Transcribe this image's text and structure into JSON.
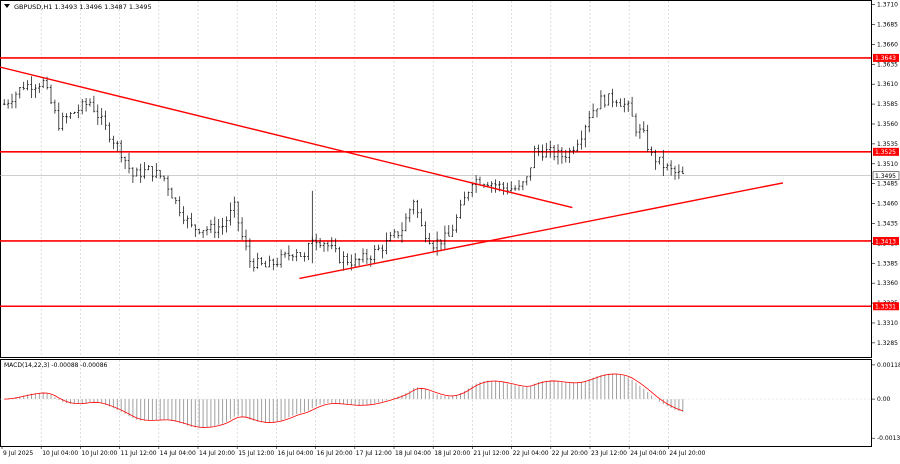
{
  "chart_data": [
    {
      "type": "candlestick",
      "symbol_header": "GBPUSD,H1  1.3493 1.3496 1.3487 1.3495",
      "current_price": 1.3495,
      "current_price_label": "1.3495",
      "ylim": [
        1.3271,
        1.3712
      ],
      "y_ticks": [
        "1.3710",
        "1.3685",
        "1.3660",
        "1.3635",
        "1.3610",
        "1.3585",
        "1.3560",
        "1.3535",
        "1.3510",
        "1.3485",
        "1.3460",
        "1.3435",
        "1.3410",
        "1.3385",
        "1.3360",
        "1.3335",
        "1.3310",
        "1.3285"
      ],
      "y_tick_values": [
        1.371,
        1.3685,
        1.366,
        1.3635,
        1.361,
        1.3585,
        1.356,
        1.3535,
        1.351,
        1.3485,
        1.346,
        1.3435,
        1.341,
        1.3385,
        1.336,
        1.3335,
        1.331,
        1.3285
      ],
      "x_ticks": [
        "9 Jul 2025",
        "10 Jul 04:00",
        "10 Jul 20:00",
        "11 Jul 12:00",
        "14 Jul 04:00",
        "14 Jul 20:00",
        "15 Jul 12:00",
        "16 Jul 04:00",
        "16 Jul 20:00",
        "17 Jul 12:00",
        "18 Jul 04:00",
        "18 Jul 20:00",
        "21 Jul 12:00",
        "22 Jul 04:00",
        "22 Jul 20:00",
        "23 Jul 12:00",
        "24 Jul 04:00",
        "24 Jul 20:00"
      ],
      "levels": [
        {
          "value": 1.3643,
          "label": "1.3643"
        },
        {
          "value": 1.3525,
          "label": "1.3525"
        },
        {
          "value": 1.3413,
          "label": "1.3413"
        },
        {
          "value": 1.3331,
          "label": "1.3331"
        }
      ],
      "trendlines": [
        {
          "name": "descending",
          "start_bar": -2,
          "start": 1.3633,
          "end_bar": 146,
          "end": 1.3455
        },
        {
          "name": "ascending",
          "start_bar": 76,
          "start": 1.3366,
          "end_bar": 200,
          "end": 1.3486
        }
      ],
      "price_path": [
        [
          0,
          1.3585
        ],
        [
          5,
          1.3608
        ],
        [
          10,
          1.3612
        ],
        [
          14,
          1.356
        ],
        [
          18,
          1.3575
        ],
        [
          22,
          1.3588
        ],
        [
          26,
          1.3555
        ],
        [
          30,
          1.3525
        ],
        [
          33,
          1.3495
        ],
        [
          37,
          1.3502
        ],
        [
          41,
          1.3492
        ],
        [
          44,
          1.3462
        ],
        [
          48,
          1.343
        ],
        [
          53,
          1.3428
        ],
        [
          56,
          1.3432
        ],
        [
          59,
          1.3455
        ],
        [
          61,
          1.3418
        ],
        [
          63,
          1.3388
        ],
        [
          67,
          1.338
        ],
        [
          71,
          1.339
        ],
        [
          75,
          1.3402
        ],
        [
          77,
          1.339
        ],
        [
          79,
          1.3418
        ],
        [
          82,
          1.3412
        ],
        [
          86,
          1.3392
        ],
        [
          90,
          1.3386
        ],
        [
          94,
          1.3395
        ],
        [
          98,
          1.341
        ],
        [
          102,
          1.3428
        ],
        [
          105,
          1.3465
        ],
        [
          107,
          1.343
        ],
        [
          110,
          1.341
        ],
        [
          114,
          1.3418
        ],
        [
          117,
          1.3452
        ],
        [
          120,
          1.349
        ],
        [
          124,
          1.3488
        ],
        [
          128,
          1.348
        ],
        [
          132,
          1.3478
        ],
        [
          134,
          1.349
        ],
        [
          136,
          1.3526
        ],
        [
          139,
          1.3525
        ],
        [
          143,
          1.352
        ],
        [
          145,
          1.3525
        ],
        [
          148,
          1.3548
        ],
        [
          150,
          1.3572
        ],
        [
          153,
          1.359
        ],
        [
          157,
          1.3592
        ],
        [
          160,
          1.358
        ],
        [
          162,
          1.3555
        ],
        [
          164,
          1.3545
        ],
        [
          166,
          1.352
        ],
        [
          169,
          1.3508
        ],
        [
          172,
          1.3498
        ],
        [
          174,
          1.3495
        ]
      ]
    },
    {
      "type": "histogram",
      "title": "MACD(14,22,3) -0.00088 -0.00086",
      "ylim": [
        -0.00155,
        0.00128
      ],
      "y_ticks": [
        "0.00118",
        "0.00",
        "-0.00135"
      ],
      "y_tick_values": [
        0.00118,
        0.0,
        -0.00135
      ],
      "zero_line": 0.0
    }
  ]
}
